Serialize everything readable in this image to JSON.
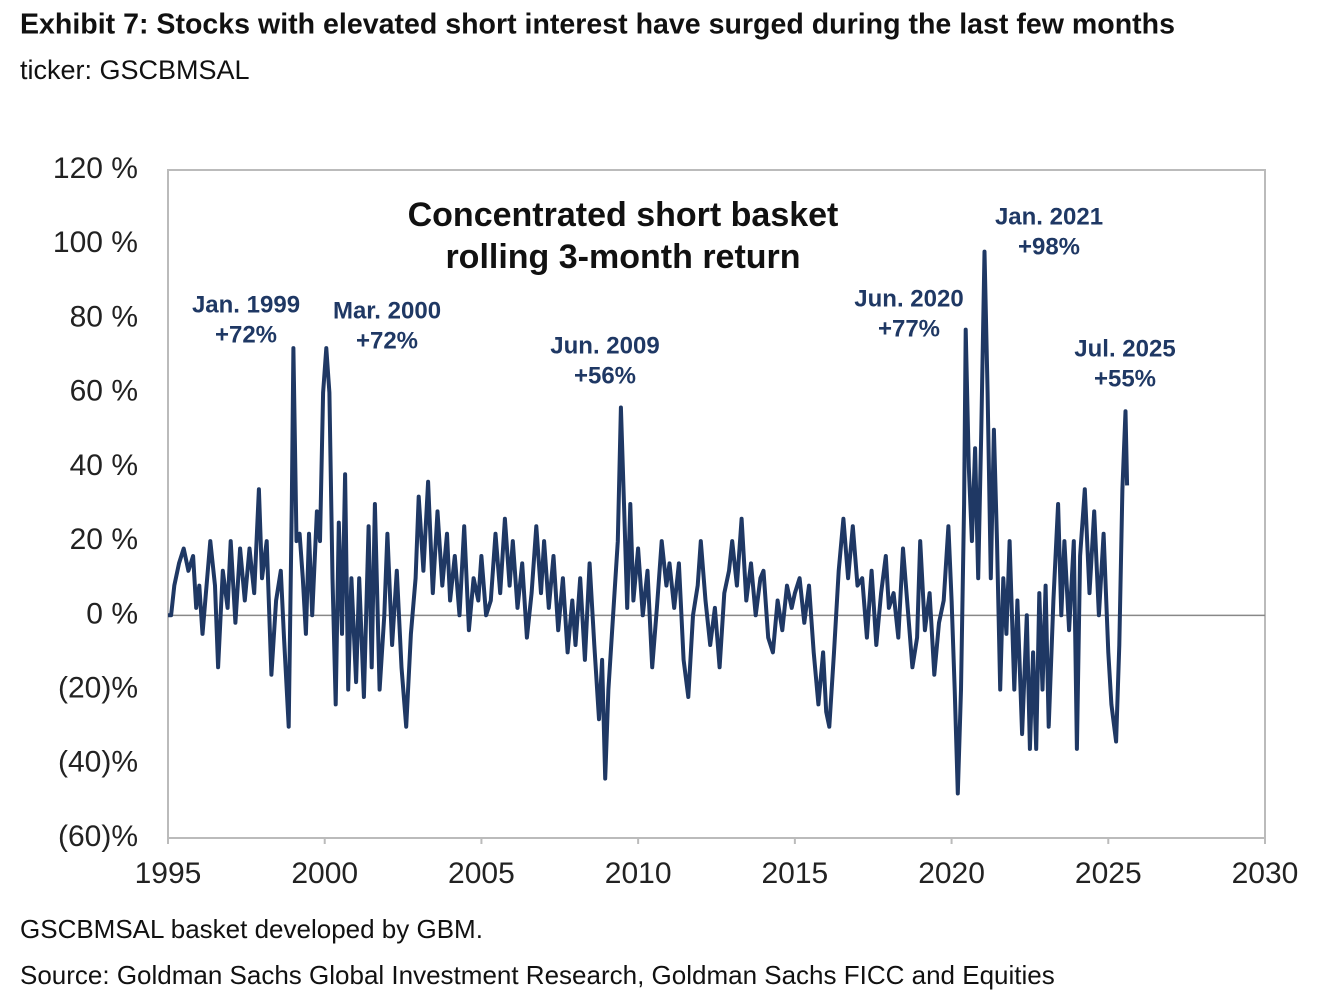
{
  "chart_data": {
    "type": "line",
    "title": "Exhibit 7: Stocks with elevated short interest have surged during the last few months",
    "subtitle": "ticker: GSCBMSAL",
    "chart_label": [
      "Concentrated short basket",
      "rolling 3-month return"
    ],
    "footnote": "GSCBMSAL basket developed by GBM.",
    "source": "Source: Goldman Sachs Global Investment Research, Goldman Sachs FICC and Equities",
    "annotations": [
      {
        "label": "Jan. 1999",
        "value_label": "+72%"
      },
      {
        "label": "Mar. 2000",
        "value_label": "+72%"
      },
      {
        "label": "Jun. 2009",
        "value_label": "+56%"
      },
      {
        "label": "Jun. 2020",
        "value_label": "+77%"
      },
      {
        "label": "Jan. 2021",
        "value_label": "+98%"
      },
      {
        "label": "Jul. 2025",
        "value_label": "+55%"
      }
    ],
    "xlim": [
      1995,
      2030
    ],
    "xticks": [
      1995,
      2000,
      2005,
      2010,
      2015,
      2020,
      2025,
      2030
    ],
    "ylim": [
      -60,
      120
    ],
    "yticks": [
      {
        "value": -60,
        "label": "(60)%"
      },
      {
        "value": -40,
        "label": "(40)%"
      },
      {
        "value": -20,
        "label": "(20)%"
      },
      {
        "value": 0,
        "label": "0 %"
      },
      {
        "value": 20,
        "label": "20 %"
      },
      {
        "value": 40,
        "label": "40 %"
      },
      {
        "value": 60,
        "label": "60 %"
      },
      {
        "value": 80,
        "label": "80 %"
      },
      {
        "value": 100,
        "label": "100 %"
      },
      {
        "value": 120,
        "label": "120 %"
      }
    ],
    "x": [
      1995.0,
      1995.1,
      1995.2,
      1995.35,
      1995.5,
      1995.65,
      1995.8,
      1995.9,
      1996.0,
      1996.1,
      1996.2,
      1996.35,
      1996.5,
      1996.6,
      1996.75,
      1996.9,
      1997.0,
      1997.15,
      1997.3,
      1997.45,
      1997.6,
      1997.75,
      1997.9,
      1998.0,
      1998.15,
      1998.3,
      1998.45,
      1998.6,
      1998.7,
      1998.85,
      1998.95,
      1999.0,
      1999.1,
      1999.2,
      1999.3,
      1999.4,
      1999.5,
      1999.6,
      1999.75,
      1999.85,
      1999.95,
      2000.05,
      2000.15,
      2000.25,
      2000.35,
      2000.45,
      2000.55,
      2000.65,
      2000.75,
      2000.85,
      2001.0,
      2001.1,
      2001.25,
      2001.4,
      2001.5,
      2001.6,
      2001.75,
      2001.9,
      2002.0,
      2002.15,
      2002.3,
      2002.45,
      2002.6,
      2002.75,
      2002.9,
      2003.0,
      2003.15,
      2003.3,
      2003.45,
      2003.6,
      2003.75,
      2003.9,
      2004.0,
      2004.15,
      2004.3,
      2004.45,
      2004.6,
      2004.75,
      2004.9,
      2005.0,
      2005.15,
      2005.3,
      2005.45,
      2005.6,
      2005.75,
      2005.9,
      2006.0,
      2006.15,
      2006.3,
      2006.45,
      2006.6,
      2006.75,
      2006.9,
      2007.0,
      2007.15,
      2007.3,
      2007.45,
      2007.6,
      2007.75,
      2007.9,
      2008.0,
      2008.15,
      2008.3,
      2008.45,
      2008.6,
      2008.75,
      2008.85,
      2008.95,
      2009.05,
      2009.2,
      2009.35,
      2009.45,
      2009.55,
      2009.65,
      2009.75,
      2009.85,
      2010.0,
      2010.15,
      2010.3,
      2010.45,
      2010.6,
      2010.75,
      2010.9,
      2011.0,
      2011.15,
      2011.3,
      2011.45,
      2011.6,
      2011.75,
      2011.9,
      2012.0,
      2012.15,
      2012.3,
      2012.45,
      2012.6,
      2012.75,
      2012.9,
      2013.0,
      2013.15,
      2013.3,
      2013.45,
      2013.6,
      2013.75,
      2013.9,
      2014.0,
      2014.15,
      2014.3,
      2014.45,
      2014.6,
      2014.75,
      2014.9,
      2015.0,
      2015.15,
      2015.3,
      2015.45,
      2015.6,
      2015.75,
      2015.9,
      2016.0,
      2016.1,
      2016.25,
      2016.4,
      2016.55,
      2016.7,
      2016.85,
      2017.0,
      2017.15,
      2017.3,
      2017.45,
      2017.6,
      2017.75,
      2017.9,
      2018.0,
      2018.15,
      2018.3,
      2018.45,
      2018.6,
      2018.75,
      2018.9,
      2019.0,
      2019.15,
      2019.3,
      2019.45,
      2019.6,
      2019.75,
      2019.9,
      2020.0,
      2020.1,
      2020.2,
      2020.3,
      2020.4,
      2020.45,
      2020.55,
      2020.65,
      2020.75,
      2020.85,
      2020.95,
      2021.05,
      2021.15,
      2021.25,
      2021.35,
      2021.45,
      2021.55,
      2021.65,
      2021.75,
      2021.85,
      2022.0,
      2022.1,
      2022.25,
      2022.4,
      2022.5,
      2022.6,
      2022.7,
      2022.8,
      2022.9,
      2023.0,
      2023.1,
      2023.25,
      2023.4,
      2023.5,
      2023.6,
      2023.75,
      2023.9,
      2024.0,
      2024.1,
      2024.25,
      2024.4,
      2024.55,
      2024.7,
      2024.85,
      2025.0,
      2025.1,
      2025.25,
      2025.35,
      2025.45,
      2025.55,
      2025.6
    ],
    "series": [
      {
        "name": "GSCBMSAL",
        "color": "#1f3864",
        "values": [
          0,
          0,
          8,
          14,
          18,
          12,
          16,
          2,
          8,
          -5,
          5,
          20,
          8,
          -14,
          12,
          2,
          20,
          -2,
          18,
          4,
          18,
          6,
          34,
          10,
          20,
          -16,
          4,
          12,
          -6,
          -30,
          30,
          72,
          20,
          22,
          10,
          -5,
          22,
          0,
          28,
          20,
          60,
          72,
          60,
          10,
          -24,
          25,
          -5,
          38,
          -20,
          10,
          -18,
          10,
          -22,
          24,
          -14,
          30,
          -20,
          0,
          22,
          -8,
          12,
          -14,
          -30,
          -5,
          10,
          32,
          12,
          36,
          6,
          28,
          8,
          22,
          4,
          16,
          0,
          24,
          -4,
          10,
          4,
          16,
          0,
          4,
          22,
          6,
          26,
          8,
          20,
          2,
          14,
          -6,
          6,
          24,
          6,
          20,
          2,
          16,
          -4,
          10,
          -10,
          4,
          -8,
          10,
          -12,
          14,
          -8,
          -28,
          -12,
          -44,
          -20,
          0,
          20,
          56,
          30,
          2,
          30,
          4,
          18,
          0,
          12,
          -14,
          2,
          20,
          8,
          14,
          2,
          14,
          -12,
          -22,
          0,
          8,
          20,
          4,
          -8,
          2,
          -14,
          6,
          12,
          20,
          8,
          26,
          4,
          14,
          0,
          10,
          12,
          -6,
          -10,
          4,
          -4,
          8,
          2,
          6,
          10,
          -2,
          8,
          -10,
          -24,
          -10,
          -26,
          -30,
          -10,
          12,
          26,
          10,
          24,
          8,
          10,
          -6,
          12,
          -8,
          6,
          16,
          2,
          6,
          -6,
          18,
          2,
          -14,
          -6,
          20,
          -4,
          6,
          -16,
          -2,
          4,
          24,
          4,
          -20,
          -48,
          -20,
          30,
          77,
          40,
          20,
          45,
          10,
          50,
          98,
          60,
          10,
          50,
          20,
          -20,
          10,
          -5,
          20,
          -20,
          4,
          -32,
          0,
          -36,
          -10,
          -36,
          6,
          -20,
          8,
          -30,
          4,
          30,
          0,
          20,
          -4,
          20,
          -36,
          16,
          34,
          6,
          28,
          0,
          22,
          -10,
          -24,
          -34,
          -8,
          34,
          55,
          35
        ]
      }
    ]
  }
}
